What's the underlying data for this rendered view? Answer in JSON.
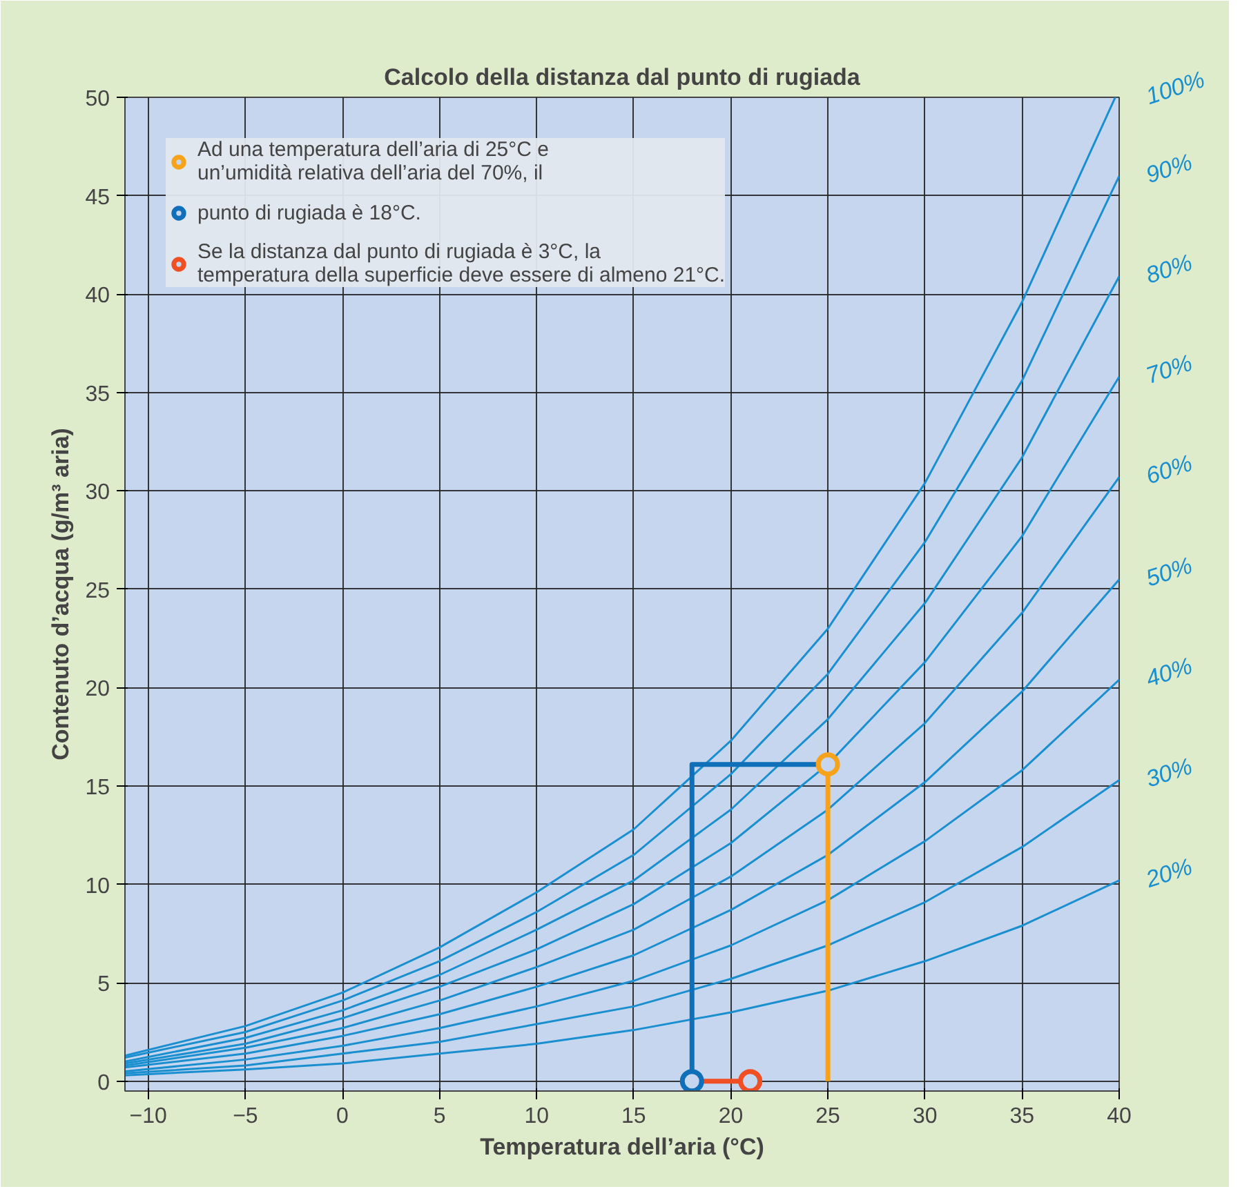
{
  "chart_data": {
    "type": "line",
    "title": "Calcolo della distanza dal punto di rugiada",
    "xlabel": "Temperatura dell’aria (°C)",
    "ylabel": "Contenuto d’acqua (g/m³ aria)",
    "xlim": [
      -11.2,
      40
    ],
    "ylim": [
      -0.5,
      50
    ],
    "xticks": [
      -10,
      -5,
      0,
      5,
      10,
      15,
      20,
      25,
      30,
      35,
      40
    ],
    "yticks": [
      0,
      5,
      10,
      15,
      20,
      25,
      30,
      35,
      40,
      45,
      50
    ],
    "grid": true,
    "legend": "top left",
    "line_style": "solid",
    "series": [
      {
        "name": "20%",
        "color": "#1a8fd0",
        "x": [
          -11.2,
          -5,
          0,
          5,
          10,
          15,
          20,
          25,
          30,
          35,
          40
        ],
        "values": [
          0.3,
          0.6,
          0.9,
          1.4,
          1.9,
          2.6,
          3.5,
          4.6,
          6.1,
          7.9,
          10.2
        ]
      },
      {
        "name": "30%",
        "color": "#1a8fd0",
        "x": [
          -11.2,
          -5,
          0,
          5,
          10,
          15,
          20,
          25,
          30,
          35,
          40
        ],
        "values": [
          0.4,
          0.8,
          1.4,
          2.0,
          2.9,
          3.8,
          5.2,
          6.9,
          9.1,
          11.9,
          15.3
        ]
      },
      {
        "name": "40%",
        "color": "#1a8fd0",
        "x": [
          -11.2,
          -5,
          0,
          5,
          10,
          15,
          20,
          25,
          30,
          35,
          40
        ],
        "values": [
          0.5,
          1.1,
          1.8,
          2.7,
          3.8,
          5.1,
          6.9,
          9.2,
          12.2,
          15.8,
          20.4
        ]
      },
      {
        "name": "50%",
        "color": "#1a8fd0",
        "x": [
          -11.2,
          -5,
          0,
          5,
          10,
          15,
          20,
          25,
          30,
          35,
          40
        ],
        "values": [
          0.7,
          1.4,
          2.3,
          3.4,
          4.8,
          6.4,
          8.7,
          11.5,
          15.2,
          19.8,
          25.5
        ]
      },
      {
        "name": "60%",
        "color": "#1a8fd0",
        "x": [
          -11.2,
          -5,
          0,
          5,
          10,
          15,
          20,
          25,
          30,
          35,
          40
        ],
        "values": [
          0.8,
          1.7,
          2.7,
          4.1,
          5.8,
          7.7,
          10.4,
          13.8,
          18.2,
          23.8,
          30.7
        ]
      },
      {
        "name": "70%",
        "color": "#1a8fd0",
        "x": [
          -11.2,
          -5,
          0,
          5,
          10,
          15,
          20,
          25,
          30,
          35,
          40
        ],
        "values": [
          0.9,
          1.9,
          3.2,
          4.8,
          6.7,
          9.0,
          12.1,
          16.1,
          21.3,
          27.7,
          35.8
        ]
      },
      {
        "name": "80%",
        "color": "#1a8fd0",
        "x": [
          -11.2,
          -5,
          0,
          5,
          10,
          15,
          20,
          25,
          30,
          35,
          40
        ],
        "values": [
          1.0,
          2.2,
          3.6,
          5.4,
          7.7,
          10.2,
          13.8,
          18.4,
          24.3,
          31.7,
          40.9
        ]
      },
      {
        "name": "90%",
        "color": "#1a8fd0",
        "x": [
          -11.2,
          -5,
          0,
          5,
          10,
          15,
          20,
          25,
          30,
          35,
          40
        ],
        "values": [
          1.2,
          2.5,
          4.1,
          6.1,
          8.6,
          11.5,
          15.6,
          20.7,
          27.4,
          35.6,
          46.0
        ]
      },
      {
        "name": "100%",
        "color": "#1a8fd0",
        "x": [
          -11.2,
          -5,
          0,
          5,
          10,
          15,
          20,
          25,
          30,
          35,
          39.8
        ],
        "values": [
          1.3,
          2.8,
          4.5,
          6.8,
          9.6,
          12.8,
          17.3,
          23.0,
          30.4,
          39.6,
          50
        ]
      },
      {
        "color": "#f7a21b",
        "x": [
          25,
          25
        ],
        "values": [
          0,
          16.1
        ]
      },
      {
        "color": "#0f6fb8",
        "x": [
          25,
          18,
          18
        ],
        "values": [
          16.1,
          16.1,
          0
        ]
      },
      {
        "color": "#f04e23",
        "x": [
          18,
          21
        ],
        "values": [
          0,
          0
        ]
      },
      {
        "type": "scatter",
        "name": "Ad una temperatura dell’aria di 25°C e\nun’umidità relativa dell’aria del 70%, il",
        "color": "#f7a21b",
        "x": [
          25
        ],
        "values": [
          16.1
        ]
      },
      {
        "type": "scatter",
        "name": "punto di rugiada è 18°C.",
        "color": "#0f6fb8",
        "x": [
          18
        ],
        "values": [
          0
        ]
      },
      {
        "type": "scatter",
        "name": "Se la distanza dal punto di rugiada è 3°C, la\ntemperatura della superficie deve essere di almeno 21°C.",
        "color": "#f04e23",
        "x": [
          21
        ],
        "values": [
          0
        ]
      }
    ]
  }
}
